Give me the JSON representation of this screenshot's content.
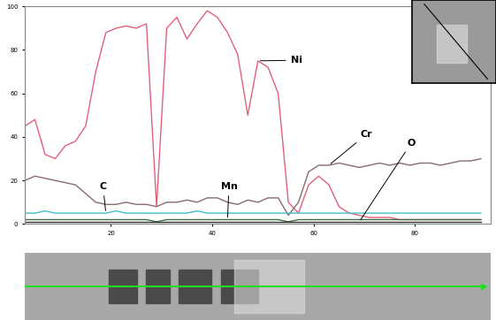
{
  "chart_data": {
    "type": "line",
    "x": [
      3,
      5,
      7,
      9,
      11,
      13,
      15,
      17,
      19,
      21,
      23,
      25,
      27,
      29,
      31,
      33,
      35,
      37,
      39,
      41,
      43,
      45,
      47,
      49,
      51,
      53,
      55,
      57,
      59,
      61,
      63,
      65,
      67,
      69,
      71,
      73,
      75,
      77,
      79,
      81,
      83,
      85,
      87,
      89,
      91,
      93
    ],
    "series": [
      {
        "name": "Ni",
        "color": "#e0607a",
        "values": [
          45,
          48,
          32,
          30,
          36,
          38,
          45,
          70,
          88,
          90,
          91,
          90,
          92,
          8,
          90,
          95,
          85,
          92,
          98,
          95,
          88,
          78,
          50,
          75,
          72,
          60,
          10,
          5,
          18,
          22,
          18,
          8,
          5,
          4,
          3,
          3,
          3,
          2,
          2,
          2,
          2,
          2,
          2,
          2,
          2,
          2
        ]
      },
      {
        "name": "Cr",
        "color": "#8a6a6e",
        "values": [
          20,
          22,
          21,
          20,
          19,
          18,
          14,
          10,
          9,
          9,
          10,
          9,
          9,
          8,
          10,
          10,
          11,
          10,
          12,
          12,
          10,
          9,
          11,
          10,
          12,
          12,
          4,
          10,
          24,
          27,
          27,
          28,
          27,
          26,
          27,
          28,
          27,
          28,
          27,
          28,
          28,
          27,
          28,
          29,
          29,
          30
        ]
      },
      {
        "name": "C",
        "color": "#40c0c8",
        "values": [
          5,
          5,
          6,
          5,
          5,
          5,
          5,
          5,
          5,
          6,
          5,
          5,
          5,
          5,
          5,
          5,
          5,
          6,
          5,
          5,
          5,
          5,
          5,
          5,
          5,
          5,
          5,
          5,
          5,
          5,
          5,
          5,
          5,
          5,
          5,
          5,
          5,
          5,
          5,
          5,
          5,
          5,
          5,
          5,
          5,
          5
        ]
      },
      {
        "name": "Mn",
        "color": "#3d6b45",
        "values": [
          2,
          2,
          2,
          2,
          2,
          2,
          2,
          2,
          2,
          2,
          2,
          2,
          2,
          1,
          2,
          2,
          2,
          2,
          2,
          2,
          2,
          2,
          2,
          2,
          2,
          2,
          1,
          2,
          2,
          2,
          2,
          2,
          2,
          2,
          2,
          2,
          2,
          2,
          2,
          2,
          2,
          2,
          2,
          2,
          2,
          2
        ]
      },
      {
        "name": "O",
        "color": "#303030",
        "values": [
          1,
          1,
          1,
          1,
          1,
          1,
          1,
          1,
          1,
          1,
          1,
          1,
          1,
          1,
          1,
          1,
          1,
          1,
          1,
          1,
          1,
          1,
          1,
          1,
          1,
          1,
          1,
          1,
          1,
          1,
          1,
          1,
          1,
          1,
          1,
          1,
          1,
          1,
          1,
          1,
          1,
          1,
          1,
          1,
          1,
          1
        ]
      }
    ],
    "xlim": [
      3,
      95
    ],
    "xticks": [
      20,
      40,
      60,
      80
    ],
    "ylim": [
      0,
      100
    ],
    "yticks": [
      0,
      20,
      40,
      60,
      80,
      100
    ],
    "grid": false
  }
}
